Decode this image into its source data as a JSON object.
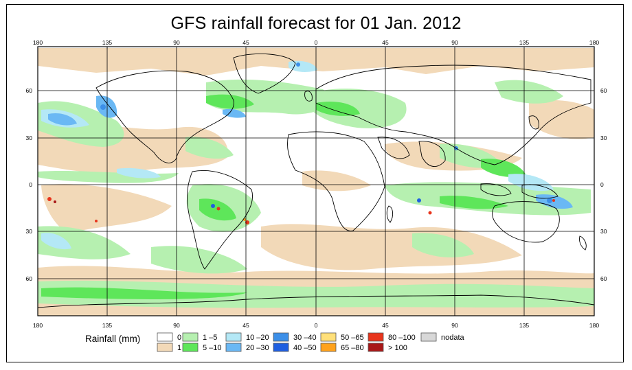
{
  "title": "GFS rainfall forecast for 01 Jan. 2012",
  "axes": {
    "lon_ticks": [
      "180",
      "135",
      "90",
      "45",
      "0",
      "45",
      "90",
      "135",
      "180"
    ],
    "lat_ticks": [
      "60",
      "30",
      "0",
      "30",
      "60"
    ]
  },
  "legend": {
    "title": "Rainfall (mm)",
    "items": [
      {
        "label": "0",
        "color": "#ffffff"
      },
      {
        "label": "1",
        "color": "#f2d9b8"
      },
      {
        "label": "1 –5",
        "color": "#b6f0b0"
      },
      {
        "label": "5 –10",
        "color": "#5ee65a"
      },
      {
        "label": "10 –20",
        "color": "#b4e8f6"
      },
      {
        "label": "20 –30",
        "color": "#6ab8f4"
      },
      {
        "label": "30 –40",
        "color": "#3c8fe8"
      },
      {
        "label": "40 –50",
        "color": "#1f5fe0"
      },
      {
        "label": "50 –65",
        "color": "#ffe07a"
      },
      {
        "label": "65 –80",
        "color": "#ffa21c"
      },
      {
        "label": "80 –100",
        "color": "#e8341c"
      },
      {
        "label": "> 100",
        "color": "#a81818"
      },
      {
        "label": "nodata",
        "color": "#d8d8d8"
      }
    ]
  }
}
